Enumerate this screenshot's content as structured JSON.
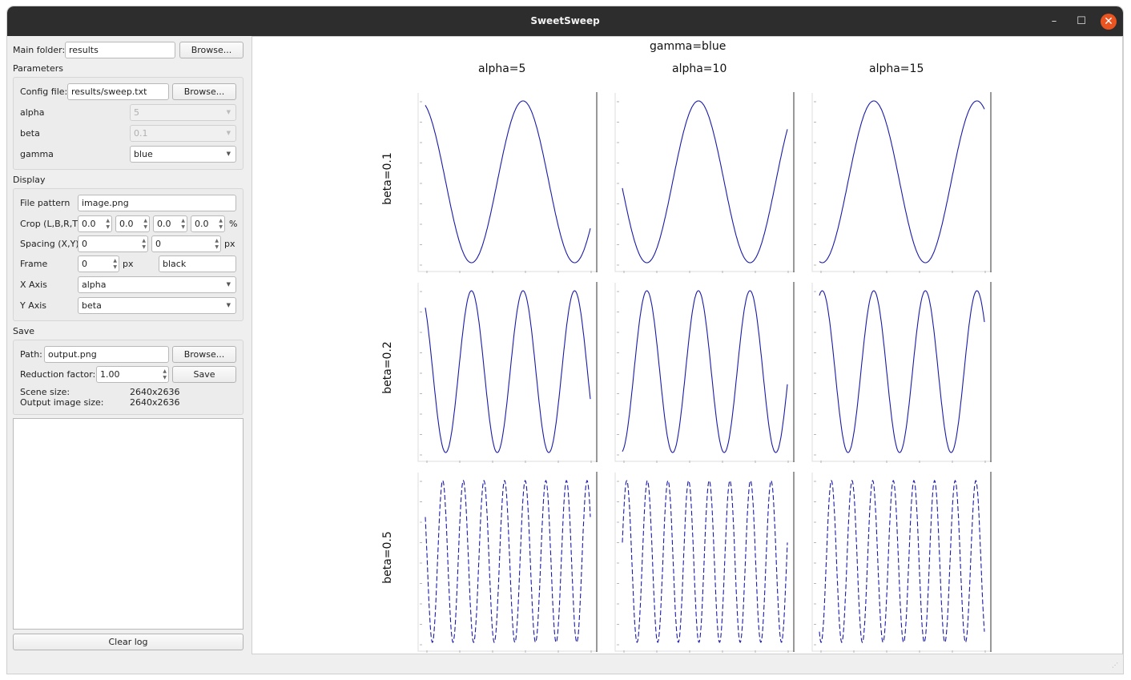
{
  "window": {
    "title": "SweetSweep",
    "minimize_icon": "–",
    "maximize_icon": "☐",
    "close_icon": "✕"
  },
  "main_folder": {
    "label": "Main folder:",
    "value": "results",
    "browse": "Browse..."
  },
  "parameters": {
    "heading": "Parameters",
    "config_label": "Config file:",
    "config_value": "results/sweep.txt",
    "browse": "Browse...",
    "items": [
      {
        "name": "alpha",
        "value": "5",
        "enabled": false
      },
      {
        "name": "beta",
        "value": "0.1",
        "enabled": false
      },
      {
        "name": "gamma",
        "value": "blue",
        "enabled": true
      }
    ]
  },
  "display": {
    "heading": "Display",
    "file_pattern_label": "File pattern",
    "file_pattern_value": "image.png",
    "crop_label": "Crop (L,B,R,T)",
    "crop_values": [
      "0.0",
      "0.0",
      "0.0",
      "0.0"
    ],
    "crop_unit": "%",
    "spacing_label": "Spacing (X,Y)",
    "spacing_values": [
      "0",
      "0"
    ],
    "spacing_unit": "px",
    "frame_label": "Frame",
    "frame_value": "0",
    "frame_unit": "px",
    "frame_color": "black",
    "x_axis_label": "X Axis",
    "x_axis_value": "alpha",
    "y_axis_label": "Y Axis",
    "y_axis_value": "beta"
  },
  "save": {
    "heading": "Save",
    "path_label": "Path:",
    "path_value": "output.png",
    "browse": "Browse...",
    "reduction_label": "Reduction factor:",
    "reduction_value": "1.00",
    "save_button": "Save",
    "scene_size_label": "Scene size:",
    "scene_size_value": "2640x2636",
    "output_size_label": "Output image size:",
    "output_size_value": "2640x2636"
  },
  "log": {
    "clear_button": "Clear log"
  },
  "sweep": {
    "title": "gamma=blue",
    "columns": [
      "alpha=5",
      "alpha=10",
      "alpha=15"
    ],
    "rows": [
      "beta=0.1",
      "beta=0.2",
      "beta=0.5"
    ],
    "line_color": "#1a1aa8"
  },
  "icons": {
    "dropdown": "chevron-down-icon",
    "spin": "spin-arrows-icon",
    "resize": "resize-grip-icon"
  }
}
